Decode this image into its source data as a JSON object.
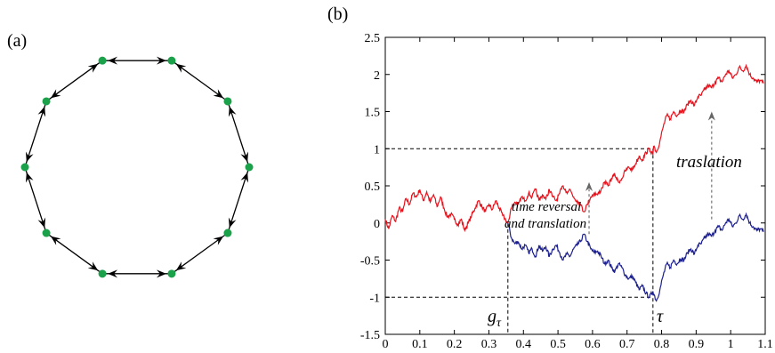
{
  "panel_a": {
    "label": "(a)",
    "node_color": "#1aa14a",
    "edge_color": "#000000",
    "node_count": 10
  },
  "panel_b": {
    "label": "(b)",
    "annotations": {
      "time_reversal_line1": "time reversal",
      "time_reversal_line2": "and translation",
      "translation": "traslation",
      "g_tau_base": "g",
      "g_tau_sub": "τ",
      "tau": "τ"
    }
  },
  "chart_data": {
    "type": "line",
    "xlim": [
      0,
      1.1
    ],
    "ylim": [
      -1.5,
      2.5
    ],
    "x_ticks": [
      "0",
      "0.1",
      "0.2",
      "0.3",
      "0.4",
      "0.5",
      "0.6",
      "0.7",
      "0.8",
      "0.9",
      "1",
      "1.1"
    ],
    "y_ticks": [
      "2.5",
      "2",
      "1.5",
      "1",
      "0.5",
      "0",
      "-0.5",
      "-1",
      "-1.5"
    ],
    "grid": false,
    "colors": {
      "red": "#e8121c",
      "blue": "#1c1f8f"
    },
    "g_tau_x": 0.355,
    "tau_x": 0.775,
    "reference_levels": [
      1,
      -1
    ],
    "base_path": [
      [
        0.0,
        0.05
      ],
      [
        0.01,
        -0.08
      ],
      [
        0.02,
        0.1
      ],
      [
        0.03,
        0.02
      ],
      [
        0.04,
        0.2
      ],
      [
        0.05,
        0.15
      ],
      [
        0.06,
        0.33
      ],
      [
        0.07,
        0.25
      ],
      [
        0.08,
        0.4
      ],
      [
        0.09,
        0.35
      ],
      [
        0.1,
        0.45
      ],
      [
        0.11,
        0.3
      ],
      [
        0.12,
        0.42
      ],
      [
        0.13,
        0.28
      ],
      [
        0.14,
        0.38
      ],
      [
        0.15,
        0.22
      ],
      [
        0.16,
        0.35
      ],
      [
        0.17,
        0.2
      ],
      [
        0.18,
        0.08
      ],
      [
        0.19,
        0.12
      ],
      [
        0.2,
        0.05
      ],
      [
        0.21,
        -0.02
      ],
      [
        0.22,
        0.05
      ],
      [
        0.23,
        -0.1
      ],
      [
        0.24,
        0.0
      ],
      [
        0.25,
        0.1
      ],
      [
        0.26,
        0.2
      ],
      [
        0.27,
        0.3
      ],
      [
        0.28,
        0.22
      ],
      [
        0.29,
        0.15
      ],
      [
        0.3,
        0.25
      ],
      [
        0.31,
        0.18
      ],
      [
        0.32,
        0.3
      ],
      [
        0.33,
        0.2
      ],
      [
        0.34,
        0.1
      ],
      [
        0.355,
        0.0
      ]
    ],
    "blue_after": [
      [
        0.355,
        0.0
      ],
      [
        0.365,
        -0.2
      ],
      [
        0.375,
        -0.28
      ],
      [
        0.385,
        -0.25
      ],
      [
        0.395,
        -0.35
      ],
      [
        0.405,
        -0.3
      ],
      [
        0.415,
        -0.4
      ],
      [
        0.425,
        -0.35
      ],
      [
        0.435,
        -0.45
      ],
      [
        0.445,
        -0.3
      ],
      [
        0.455,
        -0.38
      ],
      [
        0.465,
        -0.32
      ],
      [
        0.475,
        -0.45
      ],
      [
        0.485,
        -0.35
      ],
      [
        0.495,
        -0.3
      ],
      [
        0.505,
        -0.4
      ],
      [
        0.515,
        -0.5
      ],
      [
        0.525,
        -0.42
      ],
      [
        0.535,
        -0.45
      ],
      [
        0.545,
        -0.35
      ],
      [
        0.555,
        -0.3
      ],
      [
        0.565,
        -0.25
      ],
      [
        0.575,
        -0.15
      ],
      [
        0.585,
        -0.25
      ],
      [
        0.595,
        -0.35
      ],
      [
        0.605,
        -0.4
      ],
      [
        0.615,
        -0.38
      ],
      [
        0.625,
        -0.45
      ],
      [
        0.635,
        -0.55
      ],
      [
        0.645,
        -0.5
      ],
      [
        0.655,
        -0.6
      ],
      [
        0.665,
        -0.65
      ],
      [
        0.675,
        -0.55
      ],
      [
        0.685,
        -0.6
      ],
      [
        0.695,
        -0.7
      ],
      [
        0.705,
        -0.75
      ],
      [
        0.715,
        -0.72
      ],
      [
        0.725,
        -0.8
      ],
      [
        0.735,
        -0.9
      ],
      [
        0.745,
        -0.85
      ],
      [
        0.755,
        -0.95
      ],
      [
        0.765,
        -1.0
      ],
      [
        0.775,
        -0.92
      ],
      [
        0.785,
        -1.05
      ],
      [
        0.795,
        -0.9
      ],
      [
        0.805,
        -0.7
      ],
      [
        0.815,
        -0.55
      ],
      [
        0.825,
        -0.6
      ],
      [
        0.835,
        -0.5
      ],
      [
        0.845,
        -0.55
      ],
      [
        0.855,
        -0.48
      ],
      [
        0.865,
        -0.5
      ],
      [
        0.875,
        -0.4
      ],
      [
        0.885,
        -0.35
      ],
      [
        0.895,
        -0.42
      ],
      [
        0.905,
        -0.3
      ],
      [
        0.915,
        -0.28
      ],
      [
        0.925,
        -0.2
      ],
      [
        0.935,
        -0.15
      ],
      [
        0.945,
        -0.18
      ],
      [
        0.955,
        -0.1
      ],
      [
        0.965,
        -0.05
      ],
      [
        0.975,
        -0.1
      ],
      [
        0.985,
        0.0
      ],
      [
        0.995,
        0.05
      ],
      [
        1.005,
        -0.05
      ],
      [
        1.015,
        0.0
      ],
      [
        1.025,
        0.1
      ],
      [
        1.035,
        0.05
      ],
      [
        1.045,
        0.12
      ],
      [
        1.055,
        0.0
      ],
      [
        1.065,
        -0.05
      ],
      [
        1.075,
        -0.1
      ],
      [
        1.085,
        -0.08
      ],
      [
        1.095,
        -0.12
      ]
    ]
  }
}
